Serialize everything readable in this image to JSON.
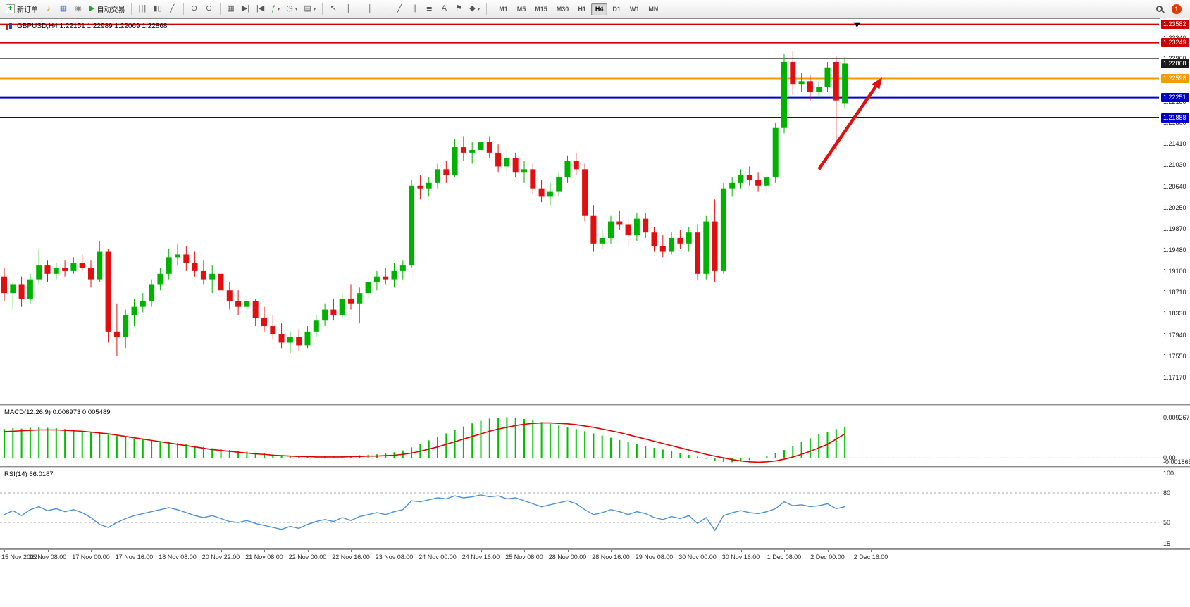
{
  "toolbar": {
    "new_order": "新订单",
    "autotrading": "自动交易",
    "timeframes": [
      "M1",
      "M5",
      "M15",
      "M30",
      "H1",
      "H4",
      "D1",
      "W1",
      "MN"
    ],
    "active_timeframe": "H4",
    "notification_badge": "1"
  },
  "chart_header": {
    "symbol_info": "GBPUSD,H4 1.22151 1.22989 1.22069 1.22868"
  },
  "price_axis": {
    "ticks": [
      "1.23340",
      "1.22960",
      "1.22570",
      "1.22180",
      "1.21800",
      "1.21410",
      "1.21030",
      "1.20640",
      "1.20250",
      "1.19870",
      "1.19480",
      "1.19100",
      "1.18710",
      "1.18330",
      "1.17940",
      "1.17550",
      "1.17170"
    ],
    "badges": [
      {
        "value": "1.23582",
        "color": "#cc0000"
      },
      {
        "value": "1.23249",
        "color": "#cc0000"
      },
      {
        "value": "1.22868",
        "color": "#1a1a1a"
      },
      {
        "value": "1.22598",
        "color": "#f59a00"
      },
      {
        "value": "1.22251",
        "color": "#0000cc"
      },
      {
        "value": "1.21888",
        "color": "#0000cc"
      }
    ]
  },
  "indicators": {
    "macd": {
      "label": "MACD(12,26,9) 0.006973 0.005489",
      "axis": [
        "0.009267",
        "0.00",
        "-0.001865"
      ]
    },
    "rsi": {
      "label": "RSI(14) 66.0187",
      "axis": [
        "100",
        "80",
        "50",
        "15"
      ]
    }
  },
  "time_axis": {
    "labels": [
      "15 Nov 2022",
      "16 Nov 08:00",
      "17 Nov 00:00",
      "17 Nov 16:00",
      "18 Nov 08:00",
      "20 Nov 22:00",
      "21 Nov 08:00",
      "22 Nov 00:00",
      "22 Nov 16:00",
      "23 Nov 08:00",
      "24 Nov 00:00",
      "24 Nov 16:00",
      "25 Nov 08:00",
      "28 Nov 00:00",
      "28 Nov 16:00",
      "29 Nov 08:00",
      "30 Nov 00:00",
      "30 Nov 16:00",
      "1 Dec 08:00",
      "2 Dec 00:00",
      "2 Dec 16:00"
    ]
  },
  "chart_data": [
    {
      "type": "candlestick",
      "symbol": "GBPUSD",
      "timeframe": "H4",
      "up_color": "#00b200",
      "down_color": "#e01010",
      "ylim": [
        1.1668,
        1.2368
      ],
      "hlines": [
        {
          "price": 1.23582,
          "color": "#cc0000",
          "width": 2
        },
        {
          "price": 1.23249,
          "color": "#cc0000",
          "width": 2
        },
        {
          "price": 1.2296,
          "color": "#3a3a3a",
          "width": 1
        },
        {
          "price": 1.22598,
          "color": "#f59a00",
          "width": 2
        },
        {
          "price": 1.22251,
          "color": "#0000cc",
          "width": 2
        },
        {
          "price": 1.21888,
          "color": "#0000cc",
          "width": 2
        }
      ],
      "annotations": [
        {
          "type": "arrow",
          "color": "#e01010",
          "from": {
            "i": 94,
            "price": 1.2095
          },
          "to": {
            "i": 101.3,
            "price": 1.2262
          }
        },
        {
          "type": "triangle-marker",
          "color": "#000000",
          "i": 98.4,
          "price": 1.2362
        }
      ],
      "ohlc": [
        [
          1.19,
          1.1915,
          1.1855,
          1.187
        ],
        [
          1.187,
          1.189,
          1.184,
          1.1885
        ],
        [
          1.1885,
          1.19,
          1.1845,
          1.186
        ],
        [
          1.186,
          1.1905,
          1.185,
          1.1895
        ],
        [
          1.1895,
          1.195,
          1.1885,
          1.192
        ],
        [
          1.192,
          1.193,
          1.189,
          1.1905
        ],
        [
          1.1905,
          1.1925,
          1.1895,
          1.1915
        ],
        [
          1.1915,
          1.193,
          1.19,
          1.191
        ],
        [
          1.191,
          1.1935,
          1.1905,
          1.1925
        ],
        [
          1.1925,
          1.194,
          1.191,
          1.1915
        ],
        [
          1.1915,
          1.193,
          1.188,
          1.1895
        ],
        [
          1.1895,
          1.1965,
          1.189,
          1.1945
        ],
        [
          1.1945,
          1.195,
          1.178,
          1.18
        ],
        [
          1.18,
          1.185,
          1.1755,
          1.179
        ],
        [
          1.179,
          1.184,
          1.177,
          1.183
        ],
        [
          1.183,
          1.186,
          1.181,
          1.1845
        ],
        [
          1.1845,
          1.187,
          1.1835,
          1.1855
        ],
        [
          1.1855,
          1.1895,
          1.1845,
          1.1885
        ],
        [
          1.1885,
          1.1915,
          1.1875,
          1.1905
        ],
        [
          1.1905,
          1.195,
          1.1895,
          1.1935
        ],
        [
          1.1935,
          1.196,
          1.192,
          1.194
        ],
        [
          1.194,
          1.1955,
          1.191,
          1.1925
        ],
        [
          1.1925,
          1.1945,
          1.19,
          1.191
        ],
        [
          1.191,
          1.193,
          1.1885,
          1.1895
        ],
        [
          1.1895,
          1.192,
          1.187,
          1.1905
        ],
        [
          1.1905,
          1.1915,
          1.186,
          1.1875
        ],
        [
          1.1875,
          1.189,
          1.184,
          1.1855
        ],
        [
          1.1855,
          1.1875,
          1.183,
          1.1845
        ],
        [
          1.1845,
          1.1865,
          1.1825,
          1.1855
        ],
        [
          1.1855,
          1.186,
          1.181,
          1.1825
        ],
        [
          1.1825,
          1.1845,
          1.18,
          1.181
        ],
        [
          1.181,
          1.183,
          1.1785,
          1.1795
        ],
        [
          1.1795,
          1.1815,
          1.177,
          1.178
        ],
        [
          1.178,
          1.18,
          1.176,
          1.179
        ],
        [
          1.179,
          1.1805,
          1.1765,
          1.1775
        ],
        [
          1.1775,
          1.181,
          1.177,
          1.18
        ],
        [
          1.18,
          1.183,
          1.179,
          1.182
        ],
        [
          1.182,
          1.185,
          1.181,
          1.184
        ],
        [
          1.184,
          1.186,
          1.182,
          1.183
        ],
        [
          1.183,
          1.187,
          1.1825,
          1.186
        ],
        [
          1.186,
          1.1885,
          1.184,
          1.185
        ],
        [
          1.185,
          1.188,
          1.1815,
          1.187
        ],
        [
          1.187,
          1.19,
          1.186,
          1.189
        ],
        [
          1.189,
          1.191,
          1.1875,
          1.19
        ],
        [
          1.19,
          1.1915,
          1.1885,
          1.1895
        ],
        [
          1.1895,
          1.1925,
          1.188,
          1.191
        ],
        [
          1.191,
          1.193,
          1.1895,
          1.192
        ],
        [
          1.192,
          1.2075,
          1.1915,
          1.2065
        ],
        [
          1.2065,
          1.2085,
          1.204,
          1.206
        ],
        [
          1.206,
          1.208,
          1.2045,
          1.207
        ],
        [
          1.207,
          1.2105,
          1.206,
          1.2095
        ],
        [
          1.2095,
          1.211,
          1.207,
          1.2085
        ],
        [
          1.2085,
          1.215,
          1.208,
          1.2135
        ],
        [
          1.2135,
          1.2155,
          1.211,
          1.2125
        ],
        [
          1.2125,
          1.2145,
          1.2105,
          1.213
        ],
        [
          1.213,
          1.216,
          1.212,
          1.2145
        ],
        [
          1.2145,
          1.2155,
          1.2115,
          1.2125
        ],
        [
          1.2125,
          1.214,
          1.209,
          1.21
        ],
        [
          1.21,
          1.213,
          1.2085,
          1.2115
        ],
        [
          1.2115,
          1.2125,
          1.208,
          1.209
        ],
        [
          1.209,
          1.211,
          1.207,
          1.2095
        ],
        [
          1.2095,
          1.2105,
          1.205,
          1.206
        ],
        [
          1.206,
          1.2075,
          1.2035,
          1.2045
        ],
        [
          1.2045,
          1.207,
          1.203,
          1.2055
        ],
        [
          1.2055,
          1.209,
          1.2045,
          1.208
        ],
        [
          1.208,
          1.212,
          1.207,
          1.211
        ],
        [
          1.211,
          1.2125,
          1.2085,
          1.2095
        ],
        [
          1.2095,
          1.2105,
          1.2,
          1.201
        ],
        [
          1.201,
          1.203,
          1.1945,
          1.196
        ],
        [
          1.196,
          1.1985,
          1.195,
          1.197
        ],
        [
          1.197,
          1.201,
          1.196,
          1.2
        ],
        [
          1.2,
          1.202,
          1.1985,
          1.1995
        ],
        [
          1.1995,
          1.2005,
          1.1955,
          1.1975
        ],
        [
          1.1975,
          1.2015,
          1.1965,
          1.2005
        ],
        [
          1.2005,
          1.2015,
          1.197,
          1.198
        ],
        [
          1.198,
          1.199,
          1.1945,
          1.1955
        ],
        [
          1.1955,
          1.1975,
          1.1935,
          1.1945
        ],
        [
          1.1945,
          1.198,
          1.194,
          1.197
        ],
        [
          1.197,
          1.1985,
          1.195,
          1.196
        ],
        [
          1.196,
          1.199,
          1.1945,
          1.198
        ],
        [
          1.198,
          1.1995,
          1.1895,
          1.1905
        ],
        [
          1.1905,
          1.201,
          1.1895,
          1.2
        ],
        [
          1.2,
          1.204,
          1.189,
          1.191
        ],
        [
          1.191,
          1.207,
          1.1905,
          1.206
        ],
        [
          1.206,
          1.208,
          1.2045,
          1.207
        ],
        [
          1.207,
          1.2095,
          1.206,
          1.2085
        ],
        [
          1.2085,
          1.21,
          1.2065,
          1.2075
        ],
        [
          1.2075,
          1.209,
          1.2055,
          1.2065
        ],
        [
          1.2065,
          1.2085,
          1.205,
          1.208
        ],
        [
          1.208,
          1.218,
          1.207,
          1.217
        ],
        [
          1.217,
          1.2305,
          1.216,
          1.229
        ],
        [
          1.229,
          1.231,
          1.223,
          1.225
        ],
        [
          1.225,
          1.227,
          1.2235,
          1.2255
        ],
        [
          1.2255,
          1.2265,
          1.222,
          1.2235
        ],
        [
          1.2235,
          1.2255,
          1.2225,
          1.2245
        ],
        [
          1.2245,
          1.229,
          1.2235,
          1.228
        ],
        [
          1.229,
          1.23,
          1.213,
          1.222
        ],
        [
          1.22151,
          1.22989,
          1.22069,
          1.22868
        ]
      ]
    },
    {
      "type": "bar",
      "name": "MACD(12,26,9)",
      "colors": {
        "histogram": "#00c000",
        "signal": "#e00000"
      },
      "ylim": [
        -0.0019,
        0.0118
      ],
      "values": [
        0.0066,
        0.0068,
        0.0067,
        0.0069,
        0.007,
        0.0069,
        0.0068,
        0.0066,
        0.0064,
        0.0061,
        0.0058,
        0.0056,
        0.0053,
        0.005,
        0.0047,
        0.0044,
        0.0042,
        0.004,
        0.0038,
        0.0036,
        0.0034,
        0.0031,
        0.0028,
        0.0025,
        0.0022,
        0.002,
        0.0018,
        0.0016,
        0.0014,
        0.0012,
        0.001,
        0.0008,
        0.0006,
        0.0005,
        0.0004,
        0.0003,
        0.0003,
        0.0004,
        0.0004,
        0.0005,
        0.0005,
        0.0006,
        0.0007,
        0.0008,
        0.001,
        0.0013,
        0.0017,
        0.0024,
        0.0032,
        0.004,
        0.0048,
        0.0056,
        0.0064,
        0.0072,
        0.0079,
        0.0085,
        0.009,
        0.0092,
        0.0093,
        0.0091,
        0.0089,
        0.0086,
        0.0082,
        0.0078,
        0.0074,
        0.007,
        0.0066,
        0.0061,
        0.0056,
        0.0051,
        0.0046,
        0.0041,
        0.0036,
        0.0031,
        0.0027,
        0.0023,
        0.0019,
        0.0015,
        0.0011,
        0.0007,
        0.0003,
        -0.0002,
        -0.0006,
        -0.0009,
        -0.001,
        -0.0008,
        -0.0005,
        -0.0001,
        0.0004,
        0.001,
        0.0018,
        0.0027,
        0.0036,
        0.0045,
        0.0054,
        0.006,
        0.0066,
        0.006973
      ],
      "signal": [
        0.006,
        0.0061,
        0.0062,
        0.0063,
        0.0064,
        0.0064,
        0.0064,
        0.0063,
        0.0062,
        0.0061,
        0.0059,
        0.0057,
        0.0055,
        0.0052,
        0.0049,
        0.0046,
        0.0043,
        0.004,
        0.0037,
        0.0034,
        0.0031,
        0.0028,
        0.0025,
        0.0022,
        0.0019,
        0.0017,
        0.0015,
        0.0013,
        0.0011,
        0.0009,
        0.0008,
        0.0006,
        0.0005,
        0.0004,
        0.0003,
        0.0003,
        0.0002,
        0.0002,
        0.0002,
        0.0002,
        0.0003,
        0.0003,
        0.0004,
        0.0004,
        0.0005,
        0.0006,
        0.0008,
        0.0011,
        0.0015,
        0.002,
        0.0025,
        0.0031,
        0.0037,
        0.0043,
        0.0049,
        0.0055,
        0.0061,
        0.0066,
        0.007,
        0.0074,
        0.0077,
        0.0079,
        0.008,
        0.008,
        0.0079,
        0.0078,
        0.0076,
        0.0073,
        0.007,
        0.0066,
        0.0062,
        0.0058,
        0.0053,
        0.0048,
        0.0043,
        0.0038,
        0.0033,
        0.0028,
        0.0023,
        0.0018,
        0.0013,
        0.0008,
        0.0004,
        0.0,
        -0.0004,
        -0.0007,
        -0.0009,
        -0.001,
        -0.0009,
        -0.0007,
        -0.0003,
        0.0002,
        0.0008,
        0.0015,
        0.0023,
        0.0031,
        0.0043,
        0.005489
      ]
    },
    {
      "type": "line",
      "name": "RSI(14)",
      "color": "#4a90d9",
      "ylim": [
        0,
        100
      ],
      "levels": [
        80,
        50
      ],
      "values": [
        58,
        62,
        57,
        63,
        66,
        62,
        64,
        61,
        63,
        60,
        55,
        48,
        45,
        50,
        54,
        57,
        59,
        61,
        63,
        65,
        63,
        60,
        57,
        55,
        57,
        54,
        51,
        50,
        52,
        49,
        47,
        45,
        43,
        46,
        44,
        48,
        51,
        53,
        51,
        55,
        52,
        56,
        58,
        60,
        58,
        61,
        63,
        72,
        71,
        73,
        75,
        74,
        77,
        75,
        76,
        78,
        76,
        77,
        74,
        75,
        72,
        69,
        66,
        68,
        70,
        72,
        69,
        63,
        58,
        60,
        63,
        61,
        58,
        61,
        59,
        55,
        53,
        56,
        54,
        57,
        49,
        55,
        42,
        57,
        60,
        62,
        60,
        59,
        61,
        64,
        71,
        67,
        68,
        66,
        67,
        69,
        64,
        66.0187
      ]
    }
  ]
}
